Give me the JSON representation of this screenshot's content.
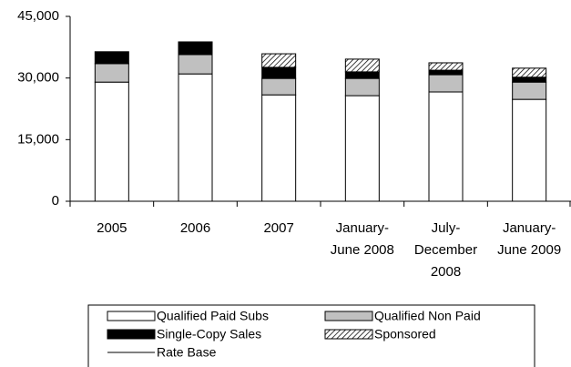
{
  "chart_data": {
    "type": "stacked-bar",
    "categories": [
      "2005",
      "2006",
      "2007",
      "January-June 2008",
      "July-December 2008",
      "January-June 2009"
    ],
    "series": [
      {
        "name": "Qualified Paid Subs",
        "color": "#ffffff",
        "values": [
          29000,
          31000,
          25900,
          25700,
          26600,
          24800
        ]
      },
      {
        "name": "Qualified Non Paid",
        "color": "#c0c0c0",
        "values": [
          4500,
          4700,
          4000,
          4200,
          4200,
          4200
        ]
      },
      {
        "name": "Single-Copy Sales",
        "color": "#000000",
        "values": [
          2900,
          3100,
          2700,
          1600,
          1100,
          1200
        ]
      },
      {
        "name": "Sponsored",
        "color": "#000000",
        "pattern": "hatch",
        "values": [
          0,
          0,
          3300,
          3100,
          1800,
          2200
        ]
      },
      {
        "name": "Rate Base",
        "type": "line",
        "color": "#000000",
        "values": [
          null,
          null,
          null,
          null,
          null,
          null
        ]
      }
    ],
    "ylim": [
      0,
      45000
    ],
    "yticks": [
      0,
      {
        "value": 15000,
        "label": "15,000"
      },
      {
        "value": 30000,
        "label": "30,000"
      },
      {
        "value": 45000,
        "label": "45,000"
      }
    ],
    "grid": false
  }
}
